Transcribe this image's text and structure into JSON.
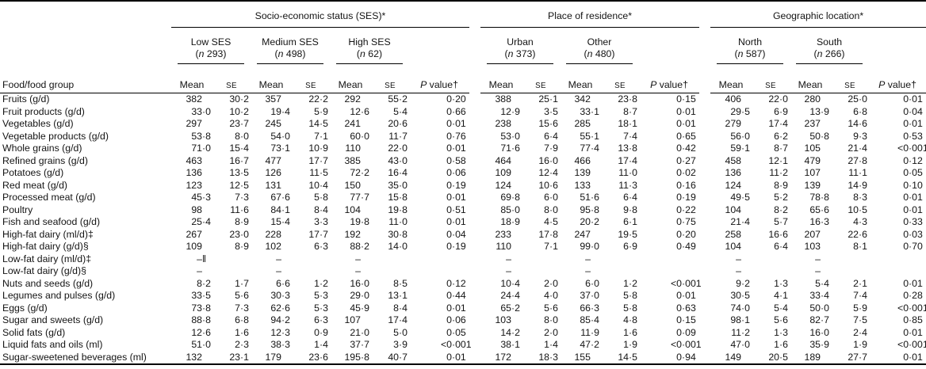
{
  "table": {
    "stub_header": "Food/food group",
    "col_labels": {
      "mean": "Mean",
      "se": "SE",
      "p": "P value†"
    },
    "groups": [
      {
        "label": "Socio-economic status (SES)*",
        "subgroups": [
          {
            "name": "Low SES",
            "n": "(n 293)"
          },
          {
            "name": "Medium SES",
            "n": "(n 498)"
          },
          {
            "name": "High SES",
            "n": "(n 62)"
          }
        ]
      },
      {
        "label": "Place of residence*",
        "subgroups": [
          {
            "name": "Urban",
            "n": "(n 373)"
          },
          {
            "name": "Other",
            "n": "(n 480)"
          }
        ]
      },
      {
        "label": "Geographic location*",
        "subgroups": [
          {
            "name": "North",
            "n": "(n 587)"
          },
          {
            "name": "South",
            "n": "(n 266)"
          }
        ]
      }
    ],
    "rows": [
      {
        "label": "Fruits (g/d)",
        "values": [
          "382",
          "30·2",
          "357",
          "22·2",
          "292",
          "55·2",
          "0·20",
          "388",
          "25·1",
          "342",
          "23·8",
          "0·15",
          "406",
          "22·0",
          "280",
          "25·0",
          "0·01"
        ]
      },
      {
        "label": "Fruit products (g/d)",
        "values": [
          "33·0",
          "10·2",
          "19·4",
          "5·9",
          "12·6",
          "5·4",
          "0·66",
          "12·9",
          "3·5",
          "33·1",
          "8·7",
          "0·01",
          "29·5",
          "6·9",
          "13·9",
          "6·8",
          "0·04"
        ]
      },
      {
        "label": "Vegetables (g/d)",
        "values": [
          "297",
          "23·7",
          "245",
          "14·5",
          "241",
          "20·6",
          "0·01",
          "238",
          "15·6",
          "285",
          "18·1",
          "0·01",
          "279",
          "17·4",
          "237",
          "14·6",
          "0·01"
        ]
      },
      {
        "label": "Vegetable products (g/d)",
        "values": [
          "53·8",
          "8·0",
          "54·0",
          "7·1",
          "60·0",
          "11·7",
          "0·76",
          "53·0",
          "6·4",
          "55·1",
          "7·4",
          "0·65",
          "56·0",
          "6·2",
          "50·8",
          "9·3",
          "0·53"
        ]
      },
      {
        "label": "Whole grains (g/d)",
        "values": [
          "71·0",
          "15·4",
          "73·1",
          "10·9",
          "110",
          "22·0",
          "0·01",
          "71·6",
          "7·9",
          "77·4",
          "13·8",
          "0·42",
          "59·1",
          "8·7",
          "105",
          "21·4",
          "<0·001"
        ]
      },
      {
        "label": "Refined grains (g/d)",
        "values": [
          "463",
          "16·7",
          "477",
          "17·7",
          "385",
          "43·0",
          "0·58",
          "464",
          "16·0",
          "466",
          "17·4",
          "0·27",
          "458",
          "12·1",
          "479",
          "27·8",
          "0·12"
        ]
      },
      {
        "label": "Potatoes (g/d)",
        "values": [
          "136",
          "13·5",
          "126",
          "11·5",
          "72·2",
          "16·4",
          "0·06",
          "109",
          "12·4",
          "139",
          "11·0",
          "0·02",
          "136",
          "11·2",
          "107",
          "11·1",
          "0·05"
        ]
      },
      {
        "label": "Red meat (g/d)",
        "values": [
          "123",
          "12·5",
          "131",
          "10·4",
          "150",
          "35·0",
          "0·19",
          "124",
          "10·6",
          "133",
          "11·3",
          "0·16",
          "124",
          "8·9",
          "139",
          "14·9",
          "0·10"
        ]
      },
      {
        "label": "Processed meat (g/d)",
        "values": [
          "45·3",
          "7·3",
          "67·6",
          "5·8",
          "77·7",
          "15·8",
          "0·01",
          "69·8",
          "6·0",
          "51·6",
          "6·4",
          "0·19",
          "49·5",
          "5·2",
          "78·8",
          "8·3",
          "0·01"
        ]
      },
      {
        "label": "Poultry",
        "values": [
          "98",
          "11·6",
          "84·1",
          "8·4",
          "104",
          "19·8",
          "0·51",
          "85·0",
          "8·0",
          "95·8",
          "9·8",
          "0·22",
          "104",
          "8·2",
          "65·6",
          "10·5",
          "0·01"
        ]
      },
      {
        "label": "Fish and seafood (g/d)",
        "values": [
          "25·4",
          "8·9",
          "15·4",
          "3·3",
          "19·8",
          "11·0",
          "0·01",
          "18·9",
          "4·5",
          "20·2",
          "6·1",
          "0·75",
          "21·4",
          "5·7",
          "16·3",
          "4·3",
          "0·33"
        ]
      },
      {
        "label": "High-fat dairy (ml/d)‡",
        "values": [
          "267",
          "23·0",
          "228",
          "17·7",
          "192",
          "30·8",
          "0·04",
          "233",
          "17·8",
          "247",
          "19·5",
          "0·20",
          "258",
          "16·6",
          "207",
          "22·6",
          "0·03"
        ]
      },
      {
        "label": "High-fat dairy (g/d)§",
        "values": [
          "109",
          "8·9",
          "102",
          "6·3",
          "88·2",
          "14·0",
          "0·19",
          "110",
          "7·1",
          "99·0",
          "6·9",
          "0·49",
          "104",
          "6·4",
          "103",
          "8·1",
          "0·70"
        ]
      },
      {
        "label": "Low-fat dairy (ml/d)‡",
        "values": [
          "–‖",
          "",
          "–",
          "",
          "–",
          "",
          "",
          "–",
          "",
          "–",
          "",
          "",
          "–",
          "",
          "–",
          "",
          ""
        ]
      },
      {
        "label": "Low-fat dairy (g/d)§",
        "values": [
          "–",
          "",
          "–",
          "",
          "–",
          "",
          "",
          "–",
          "",
          "–",
          "",
          "",
          "–",
          "",
          "–",
          "",
          ""
        ]
      },
      {
        "label": "Nuts and seeds (g/d)",
        "values": [
          "8·2",
          "1·7",
          "6·6",
          "1·2",
          "16·0",
          "8·5",
          "0·12",
          "10·4",
          "2·0",
          "6·0",
          "1·2",
          "<0·001",
          "9·2",
          "1·3",
          "5·4",
          "2·1",
          "0·01"
        ]
      },
      {
        "label": "Legumes and pulses (g/d)",
        "values": [
          "33·5",
          "5·6",
          "30·3",
          "5·3",
          "29·0",
          "13·1",
          "0·44",
          "24·4",
          "4·0",
          "37·0",
          "5·8",
          "0·01",
          "30·5",
          "4·1",
          "33·4",
          "7·4",
          "0·28"
        ]
      },
      {
        "label": "Eggs (g/d)",
        "values": [
          "73·8",
          "7·3",
          "62·6",
          "5·3",
          "45·9",
          "8·4",
          "0·01",
          "65·2",
          "5·6",
          "66·3",
          "5·8",
          "0·63",
          "74·0",
          "5·4",
          "50·0",
          "5·9",
          "<0·001"
        ]
      },
      {
        "label": "Sugar and sweets (g/d)",
        "values": [
          "88·8",
          "6·8",
          "94·2",
          "6·3",
          "107",
          "17·4",
          "0·06",
          "103",
          "8·0",
          "85·4",
          "4·8",
          "0·15",
          "98·1",
          "5·6",
          "82·7",
          "7·5",
          "0·85"
        ]
      },
      {
        "label": "Solid fats (g/d)",
        "values": [
          "12·6",
          "1·6",
          "12·3",
          "0·9",
          "21·0",
          "5·0",
          "0·05",
          "14·2",
          "2·0",
          "11·9",
          "1·6",
          "0·09",
          "11·2",
          "1·3",
          "16·0",
          "2·4",
          "0·01"
        ]
      },
      {
        "label": "Liquid fats and oils (ml)",
        "values": [
          "51·0",
          "2·3",
          "38·3",
          "1·4",
          "37·7",
          "3·9",
          "<0·001",
          "38·1",
          "1·4",
          "47·2",
          "1·9",
          "<0·001",
          "47·0",
          "1·6",
          "35·9",
          "1·9",
          "<0·001"
        ]
      },
      {
        "label": "Sugar-sweetened beverages (ml)",
        "values": [
          "132",
          "23·1",
          "179",
          "23·6",
          "195·8",
          "40·7",
          "0·01",
          "172",
          "18·3",
          "155",
          "14·5",
          "0·94",
          "149",
          "20·5",
          "189",
          "27·7",
          "0·01"
        ]
      }
    ]
  },
  "colors": {
    "text": "#141414",
    "rule": "#000000",
    "background": "#ffffff"
  }
}
